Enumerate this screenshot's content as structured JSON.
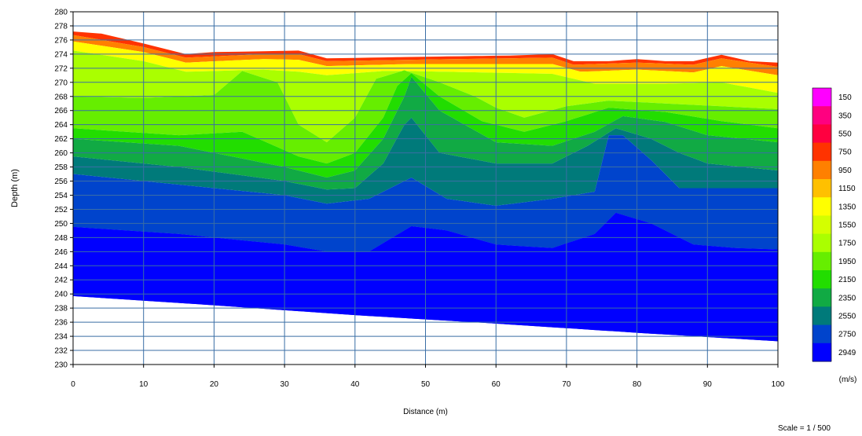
{
  "chart_data": {
    "type": "heatmap",
    "subtype": "seismic refraction velocity tomogram (filled contour)",
    "xlabel": "Distance (m)",
    "ylabel": "Depth (m)",
    "xlim": [
      0,
      100
    ],
    "ylim": [
      230,
      280
    ],
    "x_ticks": [
      0,
      10,
      20,
      30,
      40,
      50,
      60,
      70,
      80,
      90,
      100
    ],
    "y_ticks": [
      230,
      232,
      234,
      236,
      238,
      240,
      242,
      244,
      246,
      248,
      250,
      252,
      254,
      256,
      258,
      260,
      262,
      264,
      266,
      268,
      270,
      272,
      274,
      276,
      278,
      280
    ],
    "grid": true,
    "colorbar": {
      "unit_label": "(m/s)",
      "placement": "right",
      "levels": [
        {
          "value": "150",
          "color": "#ff00ff"
        },
        {
          "value": "350",
          "color": "#ff0080"
        },
        {
          "value": "550",
          "color": "#ff0040"
        },
        {
          "value": "750",
          "color": "#ff3300"
        },
        {
          "value": "950",
          "color": "#ff8000"
        },
        {
          "value": "1150",
          "color": "#ffc000"
        },
        {
          "value": "1350",
          "color": "#ffff00"
        },
        {
          "value": "1550",
          "color": "#d4ff00"
        },
        {
          "value": "1750",
          "color": "#aaff00"
        },
        {
          "value": "1950",
          "color": "#66ee00"
        },
        {
          "value": "2150",
          "color": "#22dd00"
        },
        {
          "value": "2350",
          "color": "#11aa44"
        },
        {
          "value": "2550",
          "color": "#007a7a"
        },
        {
          "value": "2750",
          "color": "#0044cc"
        },
        {
          "value": "2949",
          "color": "#0000ff"
        }
      ]
    },
    "surface_elevation": [
      [
        0,
        277.2
      ],
      [
        4,
        276.9
      ],
      [
        10,
        275.5
      ],
      [
        16,
        274.0
      ],
      [
        20,
        274.3
      ],
      [
        27,
        274.4
      ],
      [
        32,
        274.5
      ],
      [
        36,
        273.4
      ],
      [
        42,
        273.5
      ],
      [
        48,
        273.6
      ],
      [
        55,
        273.7
      ],
      [
        62,
        273.8
      ],
      [
        68,
        274.0
      ],
      [
        71,
        273.0
      ],
      [
        76,
        273.0
      ],
      [
        80,
        273.3
      ],
      [
        84,
        273.0
      ],
      [
        88,
        273.0
      ],
      [
        92,
        273.9
      ],
      [
        96,
        273.0
      ],
      [
        100,
        272.8
      ]
    ],
    "bottom_elevation": [
      [
        0,
        239.7
      ],
      [
        20,
        238.4
      ],
      [
        40,
        237.0
      ],
      [
        60,
        235.8
      ],
      [
        80,
        234.5
      ],
      [
        100,
        233.3
      ]
    ],
    "velocity_boundaries": [
      {
        "velocity": 950,
        "points": [
          [
            0,
            276.7
          ],
          [
            10,
            275.0
          ],
          [
            16,
            273.5
          ],
          [
            27,
            274.0
          ],
          [
            32,
            274.0
          ],
          [
            36,
            273.0
          ],
          [
            48,
            273.2
          ],
          [
            68,
            273.5
          ],
          [
            71,
            272.5
          ],
          [
            80,
            272.8
          ],
          [
            88,
            272.5
          ],
          [
            92,
            273.4
          ],
          [
            100,
            272.2
          ]
        ]
      },
      {
        "velocity": 1350,
        "points": [
          [
            0,
            275.8
          ],
          [
            10,
            274.3
          ],
          [
            16,
            272.8
          ],
          [
            27,
            273.3
          ],
          [
            32,
            273.2
          ],
          [
            36,
            272.3
          ],
          [
            48,
            272.6
          ],
          [
            68,
            272.6
          ],
          [
            72,
            271.5
          ],
          [
            80,
            271.8
          ],
          [
            88,
            271.4
          ],
          [
            92,
            272.3
          ],
          [
            100,
            271.0
          ]
        ]
      },
      {
        "velocity": 1750,
        "points": [
          [
            0,
            274.5
          ],
          [
            10,
            273.0
          ],
          [
            16,
            271.5
          ],
          [
            27,
            271.8
          ],
          [
            32,
            271.5
          ],
          [
            36,
            271.0
          ],
          [
            44,
            271.6
          ],
          [
            48,
            271.6
          ],
          [
            68,
            271.2
          ],
          [
            74,
            269.8
          ],
          [
            84,
            269.8
          ],
          [
            92,
            270.0
          ],
          [
            100,
            268.5
          ]
        ]
      },
      {
        "velocity": 1950,
        "points": [
          [
            0,
            268.0
          ],
          [
            10,
            267.8
          ],
          [
            20,
            268.2
          ],
          [
            24,
            271.6
          ],
          [
            29,
            270.0
          ],
          [
            32,
            264.0
          ],
          [
            36,
            261.5
          ],
          [
            40,
            265.0
          ],
          [
            43,
            270.5
          ],
          [
            47,
            271.7
          ],
          [
            52,
            270.0
          ],
          [
            57,
            268.0
          ],
          [
            60,
            266.4
          ],
          [
            64,
            265.0
          ],
          [
            70,
            266.6
          ],
          [
            76,
            267.4
          ],
          [
            84,
            267.0
          ],
          [
            92,
            266.6
          ],
          [
            100,
            266.2
          ]
        ]
      },
      {
        "velocity": 2150,
        "points": [
          [
            0,
            263.5
          ],
          [
            15,
            262.5
          ],
          [
            24,
            263.0
          ],
          [
            32,
            259.5
          ],
          [
            36,
            258.5
          ],
          [
            40,
            260.0
          ],
          [
            44,
            265.0
          ],
          [
            46,
            269.5
          ],
          [
            48,
            271.3
          ],
          [
            52,
            268.0
          ],
          [
            58,
            264.5
          ],
          [
            64,
            263.0
          ],
          [
            70,
            264.5
          ],
          [
            76,
            266.4
          ],
          [
            84,
            265.8
          ],
          [
            92,
            264.5
          ],
          [
            100,
            263.5
          ]
        ]
      },
      {
        "velocity": 2350,
        "points": [
          [
            0,
            262.0
          ],
          [
            15,
            261.0
          ],
          [
            30,
            258.0
          ],
          [
            36,
            256.5
          ],
          [
            40,
            257.5
          ],
          [
            44,
            262.0
          ],
          [
            47,
            268.0
          ],
          [
            48,
            270.8
          ],
          [
            52,
            266.0
          ],
          [
            60,
            261.5
          ],
          [
            68,
            261.0
          ],
          [
            74,
            263.0
          ],
          [
            78,
            265.2
          ],
          [
            84,
            264.4
          ],
          [
            90,
            262.5
          ],
          [
            100,
            261.5
          ]
        ]
      },
      {
        "velocity": 2550,
        "points": [
          [
            0,
            259.5
          ],
          [
            15,
            258.0
          ],
          [
            30,
            256.0
          ],
          [
            36,
            254.8
          ],
          [
            40,
            255.0
          ],
          [
            44,
            258.5
          ],
          [
            47,
            264.0
          ],
          [
            48,
            265.0
          ],
          [
            52,
            260.0
          ],
          [
            60,
            258.5
          ],
          [
            68,
            258.5
          ],
          [
            73,
            261.0
          ],
          [
            77,
            263.5
          ],
          [
            82,
            262.0
          ],
          [
            86,
            260.0
          ],
          [
            90,
            258.5
          ],
          [
            100,
            257.5
          ]
        ]
      },
      {
        "velocity": 2750,
        "points": [
          [
            0,
            257.0
          ],
          [
            15,
            255.5
          ],
          [
            30,
            254.0
          ],
          [
            36,
            252.8
          ],
          [
            42,
            253.5
          ],
          [
            48,
            256.5
          ],
          [
            53,
            253.5
          ],
          [
            60,
            252.5
          ],
          [
            68,
            253.5
          ],
          [
            74,
            254.5
          ],
          [
            76,
            262.5
          ],
          [
            78,
            262.5
          ],
          [
            82,
            259.0
          ],
          [
            86,
            255.0
          ],
          [
            92,
            255.0
          ],
          [
            100,
            255.0
          ]
        ]
      },
      {
        "velocity": 2949,
        "points": [
          [
            0,
            249.5
          ],
          [
            15,
            248.5
          ],
          [
            30,
            247.0
          ],
          [
            36,
            246.0
          ],
          [
            42,
            246.0
          ],
          [
            48,
            249.6
          ],
          [
            53,
            249.0
          ],
          [
            60,
            247.0
          ],
          [
            68,
            246.5
          ],
          [
            74,
            248.5
          ],
          [
            77,
            251.5
          ],
          [
            82,
            250.0
          ],
          [
            88,
            247.0
          ],
          [
            94,
            246.5
          ],
          [
            100,
            246.3
          ]
        ]
      }
    ]
  },
  "footer": {
    "scale_label": "Scale = 1 / 500"
  }
}
